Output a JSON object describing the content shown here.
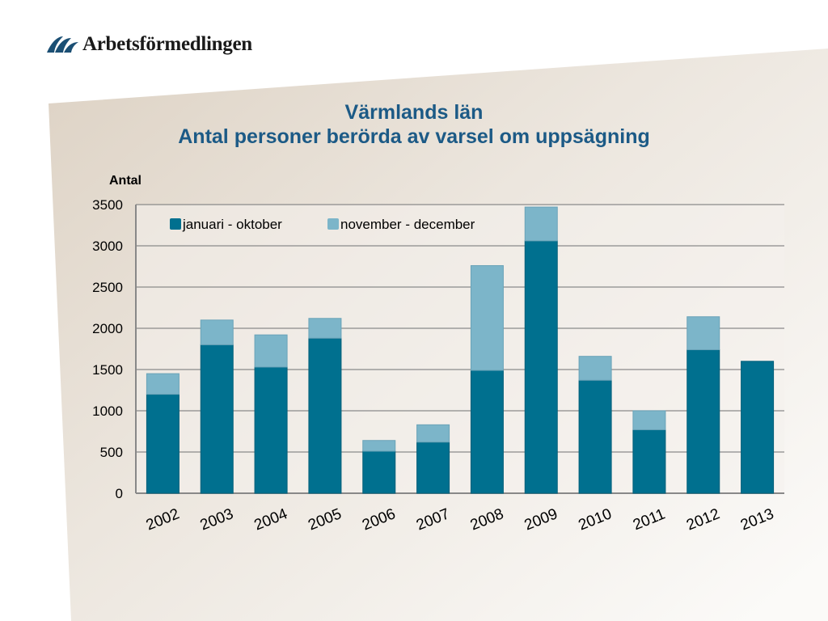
{
  "brand": {
    "logo_text": "Arbetsförmedlingen",
    "logo_icon": "arbetsformedlingen-logo-icon"
  },
  "title": {
    "line1": "Värmlands län",
    "line2": "Antal personer berörda av varsel om uppsägning"
  },
  "colors": {
    "series_jan_okt": "#00708f",
    "series_nov_dec": "#7cb5c9",
    "title": "#1c5a86",
    "background_panel": "#ece6de"
  },
  "chart_data": {
    "type": "bar",
    "stacked": true,
    "ylabel": "Antal",
    "xlabel": "",
    "ylim": [
      0,
      3500
    ],
    "yticks": [
      0,
      500,
      1000,
      1500,
      2000,
      2500,
      3000,
      3500
    ],
    "grid": true,
    "legend_position": "top-left",
    "categories": [
      "2002",
      "2003",
      "2004",
      "2005",
      "2006",
      "2007",
      "2008",
      "2009",
      "2010",
      "2011",
      "2012",
      "2013"
    ],
    "series": [
      {
        "name": "januari - oktober",
        "color": "#00708f",
        "values": [
          1200,
          1800,
          1530,
          1880,
          510,
          620,
          1490,
          3060,
          1370,
          770,
          1740,
          1600
        ]
      },
      {
        "name": "november - december",
        "color": "#7cb5c9",
        "values": [
          250,
          300,
          390,
          240,
          130,
          210,
          1270,
          410,
          290,
          230,
          400,
          0
        ]
      }
    ]
  }
}
